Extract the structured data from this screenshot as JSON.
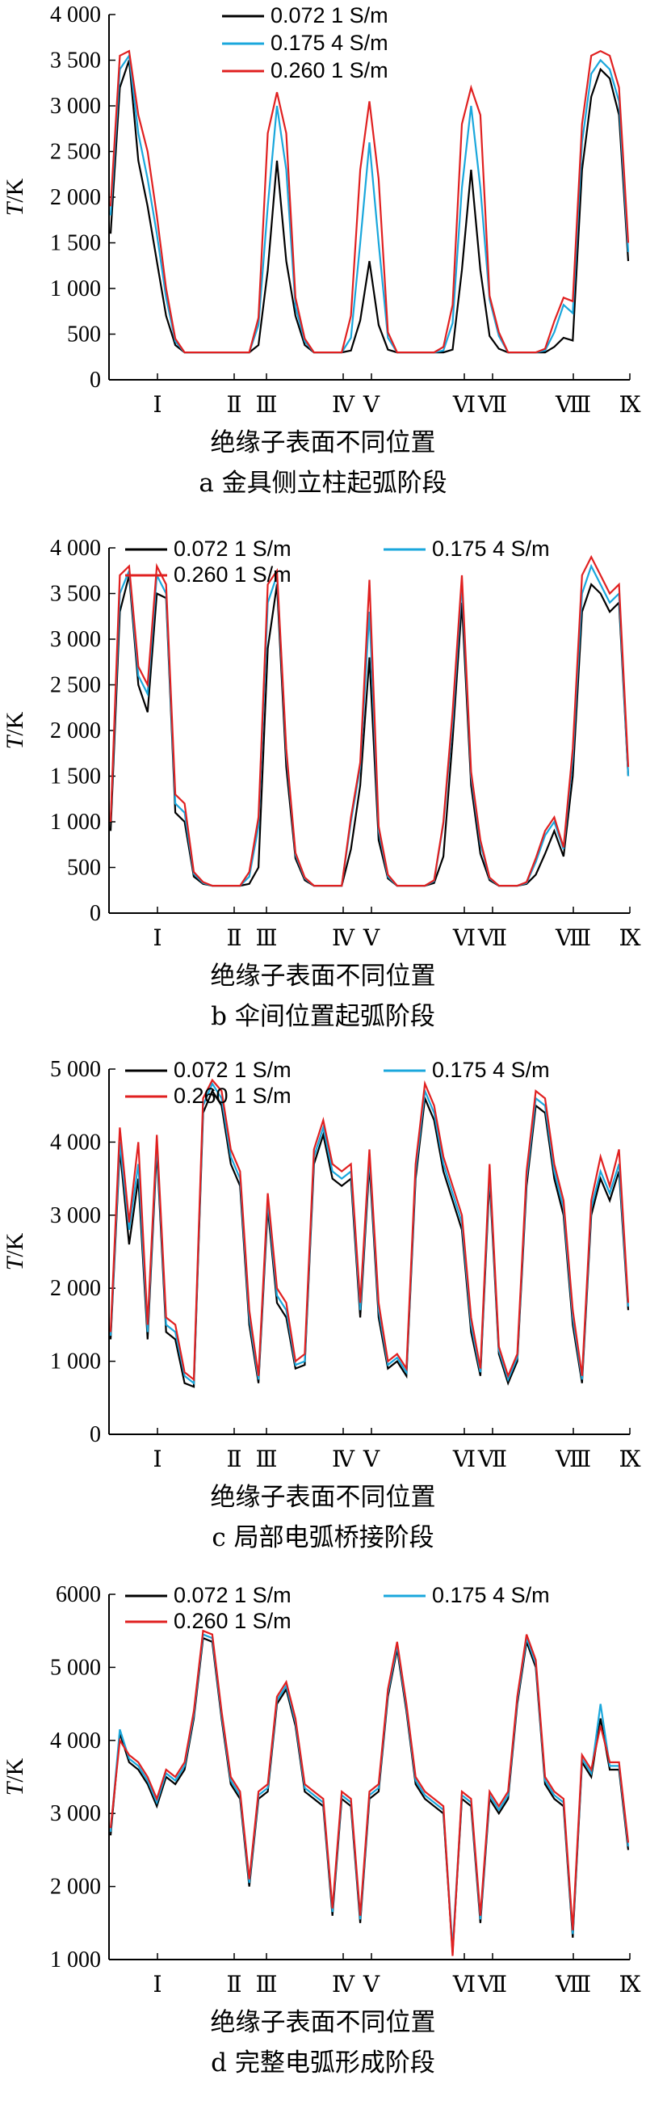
{
  "common": {
    "xlabel": "绝缘子表面不同位置",
    "ylabel_symbol": "T",
    "ylabel_unit": "/K",
    "positions": [
      "Ⅰ",
      "Ⅱ",
      "Ⅲ",
      "Ⅳ",
      "Ⅴ",
      "Ⅵ",
      "Ⅶ",
      "Ⅷ",
      "Ⅸ"
    ]
  },
  "chart_data": [
    {
      "type": "line",
      "caption": "a 金具侧立柱起弧阶段",
      "xlabel": "绝缘子表面不同位置",
      "ylabel": "T/K",
      "ylim": [
        0,
        4000
      ],
      "yticks": [
        0,
        500,
        1000,
        1500,
        2000,
        2500,
        3000,
        3500,
        4000
      ],
      "ytick_labels": [
        "0",
        "500",
        "1 000",
        "1 500",
        "2 000",
        "2 500",
        "3 000",
        "3 500",
        "4 000"
      ],
      "x_tick_labels": [
        "Ⅰ",
        "Ⅱ",
        "Ⅲ",
        "Ⅳ",
        "Ⅴ",
        "Ⅵ",
        "Ⅶ",
        "Ⅷ",
        "Ⅸ"
      ],
      "legend_position": "top",
      "series": [
        {
          "name": "0.072 1 S/m",
          "color": "#000000",
          "values": [
            1600,
            3200,
            3500,
            2400,
            1900,
            1300,
            700,
            380,
            300,
            300,
            300,
            300,
            300,
            300,
            300,
            300,
            380,
            1200,
            2400,
            1300,
            700,
            380,
            300,
            300,
            300,
            300,
            320,
            650,
            1300,
            600,
            330,
            300,
            300,
            300,
            300,
            300,
            300,
            330,
            1200,
            2300,
            1200,
            480,
            340,
            300,
            300,
            300,
            300,
            300,
            360,
            460,
            430,
            2300,
            3100,
            3400,
            3300,
            2900,
            1300
          ]
        },
        {
          "name": "0.175 4 S/m",
          "color": "#1aa7dc",
          "values": [
            1800,
            3400,
            3550,
            2700,
            2200,
            1600,
            900,
            420,
            300,
            300,
            300,
            300,
            300,
            300,
            300,
            300,
            600,
            1900,
            3000,
            2300,
            800,
            420,
            300,
            300,
            300,
            300,
            460,
            1500,
            2600,
            1500,
            460,
            300,
            300,
            300,
            300,
            300,
            320,
            620,
            2100,
            3000,
            2100,
            880,
            480,
            300,
            300,
            300,
            300,
            320,
            520,
            820,
            730,
            2600,
            3350,
            3500,
            3400,
            3050,
            1400
          ]
        },
        {
          "name": "0.260 1 S/m",
          "color": "#e02020",
          "values": [
            1900,
            3550,
            3600,
            2900,
            2500,
            1800,
            1000,
            450,
            300,
            300,
            300,
            300,
            300,
            300,
            300,
            300,
            680,
            2700,
            3150,
            2700,
            900,
            450,
            300,
            300,
            300,
            300,
            700,
            2300,
            3050,
            2200,
            520,
            300,
            300,
            300,
            300,
            300,
            360,
            820,
            2800,
            3200,
            2900,
            920,
            520,
            300,
            300,
            300,
            300,
            340,
            640,
            900,
            860,
            2800,
            3550,
            3600,
            3550,
            3200,
            1500
          ]
        }
      ]
    },
    {
      "type": "line",
      "caption": "b 伞间位置起弧阶段",
      "xlabel": "绝缘子表面不同位置",
      "ylabel": "T/K",
      "ylim": [
        0,
        4000
      ],
      "yticks": [
        0,
        500,
        1000,
        1500,
        2000,
        2500,
        3000,
        3500,
        4000
      ],
      "ytick_labels": [
        "0",
        "500",
        "1 000",
        "1 500",
        "2 000",
        "2 500",
        "3 000",
        "3 500",
        "4 000"
      ],
      "x_tick_labels": [
        "Ⅰ",
        "Ⅱ",
        "Ⅲ",
        "Ⅳ",
        "Ⅴ",
        "Ⅵ",
        "Ⅶ",
        "Ⅷ",
        "Ⅸ"
      ],
      "legend_position": "top",
      "series": [
        {
          "name": "0.072 1 S/m",
          "color": "#000000",
          "values": [
            900,
            3300,
            3700,
            2500,
            2200,
            3500,
            3450,
            1100,
            1000,
            400,
            320,
            300,
            300,
            300,
            300,
            320,
            500,
            2900,
            3600,
            1600,
            600,
            360,
            300,
            300,
            300,
            300,
            700,
            1400,
            2800,
            800,
            380,
            300,
            300,
            300,
            300,
            330,
            620,
            1900,
            3400,
            1400,
            650,
            360,
            300,
            300,
            300,
            320,
            420,
            650,
            900,
            620,
            1500,
            3300,
            3600,
            3500,
            3300,
            3400,
            1500
          ]
        },
        {
          "name": "0.175 4 S/m",
          "color": "#1aa7dc",
          "values": [
            1000,
            3500,
            3750,
            2600,
            2400,
            3700,
            3500,
            1200,
            1100,
            430,
            330,
            300,
            300,
            300,
            300,
            400,
            950,
            3400,
            3700,
            1750,
            640,
            380,
            300,
            300,
            300,
            300,
            1000,
            1600,
            3300,
            900,
            400,
            300,
            300,
            300,
            300,
            350,
            980,
            2100,
            3600,
            1500,
            760,
            380,
            300,
            300,
            300,
            330,
            560,
            850,
            1000,
            700,
            1700,
            3500,
            3800,
            3600,
            3400,
            3500,
            1500
          ]
        },
        {
          "name": "0.260 1 S/m",
          "color": "#e02020",
          "values": [
            1000,
            3700,
            3800,
            2700,
            2500,
            3800,
            3600,
            1300,
            1200,
            450,
            340,
            300,
            300,
            300,
            300,
            450,
            1050,
            3600,
            3750,
            1800,
            660,
            390,
            300,
            300,
            300,
            300,
            1050,
            1650,
            3650,
            950,
            420,
            300,
            300,
            300,
            300,
            360,
            1000,
            2200,
            3700,
            1550,
            800,
            390,
            300,
            300,
            300,
            340,
            600,
            900,
            1050,
            720,
            1800,
            3700,
            3900,
            3700,
            3500,
            3600,
            1600
          ]
        }
      ]
    },
    {
      "type": "line",
      "caption": "c 局部电弧桥接阶段",
      "xlabel": "绝缘子表面不同位置",
      "ylabel": "T/K",
      "ylim": [
        0,
        5000
      ],
      "yticks": [
        0,
        1000,
        2000,
        3000,
        4000,
        5000
      ],
      "ytick_labels": [
        "0",
        "1 000",
        "2 000",
        "3 000",
        "4 000",
        "5 000"
      ],
      "x_tick_labels": [
        "Ⅰ",
        "Ⅱ",
        "Ⅲ",
        "Ⅳ",
        "Ⅴ",
        "Ⅵ",
        "Ⅶ",
        "Ⅷ",
        "Ⅸ"
      ],
      "legend_position": "top",
      "series": [
        {
          "name": "0.072 1 S/m",
          "color": "#000000",
          "values": [
            1300,
            3900,
            2600,
            3500,
            1300,
            3900,
            1400,
            1300,
            700,
            650,
            4400,
            4700,
            4500,
            3700,
            3400,
            1500,
            700,
            3100,
            1800,
            1600,
            900,
            950,
            3700,
            4100,
            3500,
            3400,
            3500,
            1600,
            3700,
            1600,
            900,
            1000,
            800,
            3500,
            4600,
            4300,
            3600,
            3200,
            2800,
            1400,
            800,
            3500,
            1100,
            700,
            1000,
            3400,
            4500,
            4400,
            3500,
            3000,
            1500,
            700,
            3000,
            3500,
            3200,
            3600,
            1700
          ]
        },
        {
          "name": "0.175 4 S/m",
          "color": "#1aa7dc",
          "values": [
            1350,
            4000,
            2800,
            3700,
            1400,
            4000,
            1500,
            1400,
            800,
            700,
            4500,
            4800,
            4600,
            3800,
            3500,
            1600,
            750,
            3200,
            1900,
            1700,
            950,
            1000,
            3800,
            4200,
            3600,
            3500,
            3600,
            1700,
            3800,
            1700,
            950,
            1050,
            850,
            3600,
            4700,
            4400,
            3700,
            3300,
            2900,
            1500,
            850,
            3600,
            1150,
            750,
            1050,
            3500,
            4600,
            4500,
            3600,
            3100,
            1600,
            750,
            3100,
            3600,
            3300,
            3700,
            1750
          ]
        },
        {
          "name": "0.260 1 S/m",
          "color": "#e02020",
          "values": [
            1400,
            4200,
            2900,
            4000,
            1500,
            4100,
            1600,
            1500,
            850,
            750,
            4600,
            4850,
            4700,
            3900,
            3600,
            1700,
            800,
            3300,
            2000,
            1800,
            1000,
            1100,
            3900,
            4300,
            3700,
            3600,
            3700,
            1800,
            3900,
            1800,
            1000,
            1100,
            900,
            3700,
            4800,
            4500,
            3800,
            3400,
            3000,
            1600,
            900,
            3700,
            1200,
            800,
            1100,
            3600,
            4700,
            4600,
            3700,
            3200,
            1700,
            800,
            3200,
            3800,
            3400,
            3900,
            1800
          ]
        }
      ]
    },
    {
      "type": "line",
      "caption": "d 完整电弧形成阶段",
      "xlabel": "绝缘子表面不同位置",
      "ylabel": "T/K",
      "ylim": [
        1000,
        6000
      ],
      "yticks": [
        1000,
        2000,
        3000,
        4000,
        5000,
        6000
      ],
      "ytick_labels": [
        "1 000",
        "2 000",
        "3 000",
        "4 000",
        "5 000",
        "6000"
      ],
      "x_tick_labels": [
        "Ⅰ",
        "Ⅱ",
        "Ⅲ",
        "Ⅳ",
        "Ⅴ",
        "Ⅵ",
        "Ⅶ",
        "Ⅷ",
        "Ⅸ"
      ],
      "legend_position": "top",
      "series": [
        {
          "name": "0.072 1 S/m",
          "color": "#000000",
          "values": [
            2700,
            4100,
            3700,
            3600,
            3400,
            3100,
            3500,
            3400,
            3600,
            4300,
            5400,
            5350,
            4300,
            3400,
            3200,
            2000,
            3200,
            3300,
            4500,
            4700,
            4200,
            3300,
            3200,
            3100,
            1600,
            3200,
            3100,
            1500,
            3200,
            3300,
            4600,
            5250,
            4400,
            3400,
            3200,
            3100,
            3000,
            1100,
            3200,
            3100,
            1500,
            3200,
            3000,
            3200,
            4500,
            5350,
            5000,
            3400,
            3200,
            3100,
            1300,
            3700,
            3500,
            4300,
            3600,
            3600,
            2500
          ]
        },
        {
          "name": "0.175 4 S/m",
          "color": "#1aa7dc",
          "values": [
            2750,
            4150,
            3750,
            3650,
            3450,
            3150,
            3550,
            3450,
            3650,
            4350,
            5450,
            5400,
            4350,
            3450,
            3250,
            2050,
            3250,
            3350,
            4550,
            4750,
            4250,
            3350,
            3250,
            3150,
            1650,
            3250,
            3150,
            1550,
            3250,
            3350,
            4650,
            5300,
            4450,
            3450,
            3250,
            3150,
            3050,
            1150,
            3250,
            3150,
            1550,
            3250,
            3050,
            3250,
            4550,
            5400,
            5050,
            3450,
            3250,
            3150,
            1350,
            3750,
            3550,
            4500,
            3650,
            3650,
            2550
          ]
        },
        {
          "name": "0.260 1 S/m",
          "color": "#e02020",
          "values": [
            2800,
            4000,
            3800,
            3700,
            3500,
            3200,
            3600,
            3500,
            3700,
            4400,
            5500,
            5450,
            4400,
            3500,
            3300,
            2100,
            3300,
            3400,
            4600,
            4800,
            4300,
            3400,
            3300,
            3200,
            1700,
            3300,
            3200,
            1600,
            3300,
            3400,
            4700,
            5350,
            4500,
            3500,
            3300,
            3200,
            3100,
            1050,
            3300,
            3200,
            1600,
            3300,
            3100,
            3300,
            4600,
            5450,
            5100,
            3500,
            3300,
            3200,
            1400,
            3800,
            3600,
            4200,
            3700,
            3700,
            2600
          ]
        }
      ]
    }
  ]
}
